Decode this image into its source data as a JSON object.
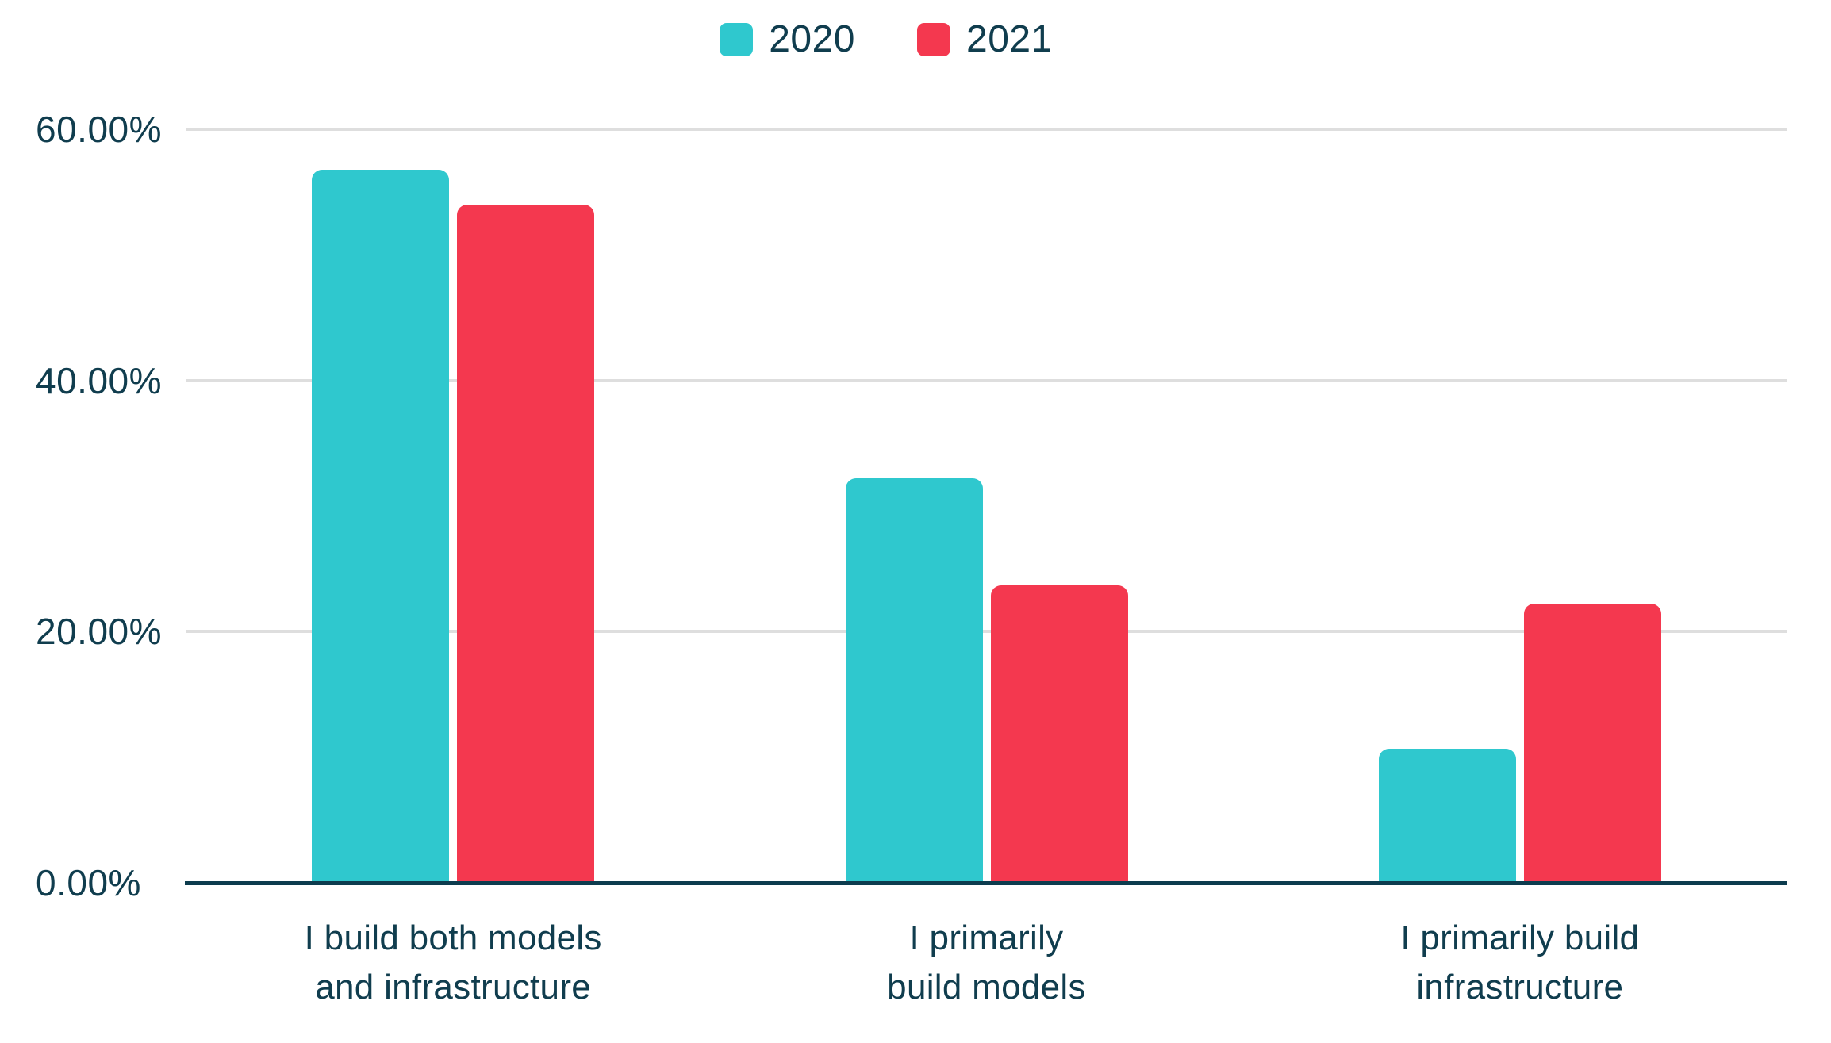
{
  "chart_data": {
    "type": "bar",
    "categories": [
      {
        "lines": [
          "I build both models",
          "and infrastructure"
        ]
      },
      {
        "lines": [
          "I primarily",
          "build models"
        ]
      },
      {
        "lines": [
          "I primarily build",
          "infrastructure"
        ]
      }
    ],
    "series": [
      {
        "name": "2020",
        "color": "#2FC8CE",
        "values": [
          56.8,
          32.2,
          10.7
        ]
      },
      {
        "name": "2021",
        "color": "#F4384F",
        "values": [
          54.0,
          23.7,
          22.2
        ]
      }
    ],
    "y_axis": {
      "unit": "%",
      "min": 0,
      "max": 60,
      "ticks": [
        {
          "label": "0.00%",
          "value": 0
        },
        {
          "label": "20.00%",
          "value": 20
        },
        {
          "label": "40.00%",
          "value": 40
        },
        {
          "label": "60.00%",
          "value": 60
        }
      ]
    },
    "grid": "horizontal",
    "legend_position": "top"
  },
  "style": {
    "text_color": "#103D4E",
    "gridline_color": "#DEDEDE",
    "axis_color": "#0D3C4E",
    "background": "#FFFFFF"
  }
}
